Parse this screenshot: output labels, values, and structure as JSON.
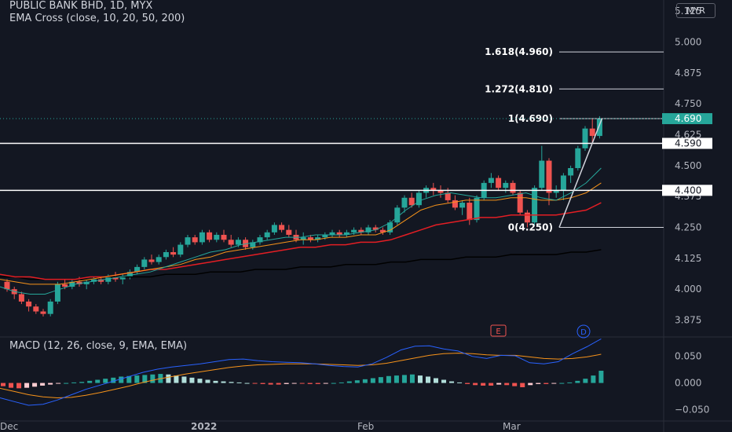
{
  "header": {
    "symbol_line": "PUBLIC BANK BHD, 1D, MYX",
    "indicator_line": "EMA Cross (close, 10, 20, 50, 200)",
    "currency": "MYR"
  },
  "macd": {
    "label": "MACD (12, 26, close, 9, EMA, EMA)"
  },
  "events": [
    "E",
    "D"
  ],
  "colors": {
    "background": "#131722",
    "up": "#26a69a",
    "down": "#ef5350",
    "ema10": "#26a69a",
    "ema20": "#f7931a",
    "ema50": "#e31e24",
    "ema200": "#000000",
    "macd_line": "#2962ff",
    "signal_line": "#f7931a",
    "hist_up": "#26a69a",
    "hist_up_light": "#b2dfdb",
    "hist_down": "#ef5350",
    "hist_down_light": "#ffcdd2"
  },
  "chart_data": [
    {
      "type": "candlestick",
      "title": "PUBLIC BANK BHD, 1D, MYX",
      "ylim": [
        3.81,
        5.17
      ],
      "y_ticks": [
        "5.125",
        "5.000",
        "4.875",
        "4.750",
        "4.625",
        "4.500",
        "4.375",
        "4.250",
        "4.125",
        "4.000",
        "3.875"
      ],
      "x_ticks": [
        "Dec",
        "2022",
        "Feb",
        "Mar"
      ],
      "price_label": "4.690",
      "horizontal_lines": [
        {
          "value": 4.59,
          "label": "4.590"
        },
        {
          "value": 4.4,
          "label": "4.400"
        }
      ],
      "fibonacci": [
        {
          "value": 4.96,
          "label": "1.618(4.960)"
        },
        {
          "value": 4.81,
          "label": "1.272(4.810)"
        },
        {
          "value": 4.69,
          "label": "1(4.690)"
        },
        {
          "value": 4.25,
          "label": "0(4.250)"
        }
      ],
      "candles": [
        [
          4.03,
          4.04,
          3.99,
          4.0
        ],
        [
          4.0,
          4.01,
          3.96,
          3.98
        ],
        [
          3.98,
          3.99,
          3.94,
          3.95
        ],
        [
          3.95,
          3.96,
          3.91,
          3.93
        ],
        [
          3.93,
          3.94,
          3.9,
          3.91
        ],
        [
          3.91,
          3.92,
          3.89,
          3.9
        ],
        [
          3.9,
          3.96,
          3.89,
          3.95
        ],
        [
          3.95,
          4.03,
          3.94,
          4.02
        ],
        [
          4.02,
          4.04,
          4.0,
          4.01
        ],
        [
          4.01,
          4.04,
          4.0,
          4.03
        ],
        [
          4.03,
          4.05,
          4.01,
          4.02
        ],
        [
          4.02,
          4.04,
          4.0,
          4.03
        ],
        [
          4.03,
          4.05,
          4.02,
          4.04
        ],
        [
          4.04,
          4.05,
          4.02,
          4.03
        ],
        [
          4.03,
          4.06,
          4.02,
          4.05
        ],
        [
          4.05,
          4.07,
          4.03,
          4.04
        ],
        [
          4.04,
          4.06,
          4.02,
          4.05
        ],
        [
          4.05,
          4.08,
          4.04,
          4.07
        ],
        [
          4.07,
          4.1,
          4.06,
          4.09
        ],
        [
          4.09,
          4.13,
          4.08,
          4.12
        ],
        [
          4.12,
          4.14,
          4.1,
          4.11
        ],
        [
          4.11,
          4.14,
          4.1,
          4.13
        ],
        [
          4.13,
          4.16,
          4.12,
          4.15
        ],
        [
          4.15,
          4.17,
          4.13,
          4.14
        ],
        [
          4.14,
          4.19,
          4.13,
          4.18
        ],
        [
          4.18,
          4.22,
          4.17,
          4.21
        ],
        [
          4.21,
          4.22,
          4.18,
          4.19
        ],
        [
          4.19,
          4.24,
          4.18,
          4.23
        ],
        [
          4.23,
          4.24,
          4.19,
          4.2
        ],
        [
          4.2,
          4.23,
          4.19,
          4.22
        ],
        [
          4.22,
          4.24,
          4.19,
          4.2
        ],
        [
          4.2,
          4.22,
          4.17,
          4.18
        ],
        [
          4.18,
          4.21,
          4.17,
          4.2
        ],
        [
          4.2,
          4.21,
          4.16,
          4.17
        ],
        [
          4.17,
          4.2,
          4.16,
          4.19
        ],
        [
          4.19,
          4.22,
          4.18,
          4.21
        ],
        [
          4.21,
          4.24,
          4.2,
          4.23
        ],
        [
          4.23,
          4.27,
          4.22,
          4.26
        ],
        [
          4.26,
          4.27,
          4.23,
          4.24
        ],
        [
          4.24,
          4.26,
          4.21,
          4.22
        ],
        [
          4.22,
          4.24,
          4.19,
          4.2
        ],
        [
          4.2,
          4.23,
          4.18,
          4.21
        ],
        [
          4.21,
          4.22,
          4.19,
          4.2
        ],
        [
          4.2,
          4.22,
          4.19,
          4.21
        ],
        [
          4.21,
          4.23,
          4.2,
          4.22
        ],
        [
          4.22,
          4.24,
          4.21,
          4.23
        ],
        [
          4.23,
          4.24,
          4.21,
          4.22
        ],
        [
          4.22,
          4.24,
          4.21,
          4.23
        ],
        [
          4.23,
          4.25,
          4.22,
          4.24
        ],
        [
          4.24,
          4.25,
          4.22,
          4.23
        ],
        [
          4.23,
          4.26,
          4.22,
          4.25
        ],
        [
          4.25,
          4.26,
          4.23,
          4.24
        ],
        [
          4.24,
          4.25,
          4.22,
          4.23
        ],
        [
          4.23,
          4.28,
          4.22,
          4.27
        ],
        [
          4.27,
          4.34,
          4.26,
          4.33
        ],
        [
          4.33,
          4.38,
          4.31,
          4.37
        ],
        [
          4.37,
          4.39,
          4.33,
          4.34
        ],
        [
          4.34,
          4.4,
          4.33,
          4.39
        ],
        [
          4.39,
          4.42,
          4.37,
          4.41
        ],
        [
          4.41,
          4.43,
          4.38,
          4.4
        ],
        [
          4.4,
          4.42,
          4.37,
          4.39
        ],
        [
          4.39,
          4.41,
          4.35,
          4.36
        ],
        [
          4.36,
          4.38,
          4.32,
          4.33
        ],
        [
          4.33,
          4.36,
          4.3,
          4.35
        ],
        [
          4.35,
          4.37,
          4.26,
          4.28
        ],
        [
          4.28,
          4.38,
          4.27,
          4.37
        ],
        [
          4.37,
          4.44,
          4.36,
          4.43
        ],
        [
          4.43,
          4.47,
          4.41,
          4.45
        ],
        [
          4.45,
          4.46,
          4.4,
          4.41
        ],
        [
          4.41,
          4.44,
          4.39,
          4.43
        ],
        [
          4.43,
          4.44,
          4.38,
          4.39
        ],
        [
          4.39,
          4.4,
          4.3,
          4.31
        ],
        [
          4.31,
          4.32,
          4.25,
          4.27
        ],
        [
          4.27,
          4.42,
          4.26,
          4.41
        ],
        [
          4.41,
          4.58,
          4.4,
          4.52
        ],
        [
          4.52,
          4.53,
          4.34,
          4.39
        ],
        [
          4.39,
          4.42,
          4.37,
          4.4
        ],
        [
          4.4,
          4.47,
          4.36,
          4.46
        ],
        [
          4.46,
          4.5,
          4.43,
          4.49
        ],
        [
          4.49,
          4.58,
          4.48,
          4.57
        ],
        [
          4.57,
          4.66,
          4.56,
          4.65
        ],
        [
          4.65,
          4.69,
          4.59,
          4.62
        ],
        [
          4.62,
          4.7,
          4.61,
          4.69
        ]
      ],
      "ema10": [
        4.01,
        3.99,
        3.98,
        3.98,
        4.0,
        4.02,
        4.03,
        4.04,
        4.05,
        4.06,
        4.07,
        4.09,
        4.11,
        4.13,
        4.15,
        4.16,
        4.18,
        4.19,
        4.2,
        4.21,
        4.21,
        4.22,
        4.22,
        4.22,
        4.23,
        4.24,
        4.27,
        4.32,
        4.36,
        4.38,
        4.39,
        4.38,
        4.37,
        4.37,
        4.38,
        4.39,
        4.37,
        4.36,
        4.39,
        4.43,
        4.49
      ],
      "ema20": [
        4.04,
        4.03,
        4.02,
        4.02,
        4.02,
        4.03,
        4.04,
        4.05,
        4.06,
        4.07,
        4.08,
        4.09,
        4.1,
        4.12,
        4.13,
        4.15,
        4.16,
        4.17,
        4.18,
        4.19,
        4.2,
        4.2,
        4.21,
        4.21,
        4.22,
        4.22,
        4.24,
        4.28,
        4.32,
        4.34,
        4.35,
        4.36,
        4.36,
        4.36,
        4.37,
        4.37,
        4.36,
        4.36,
        4.37,
        4.39,
        4.43
      ],
      "ema50": [
        4.06,
        4.05,
        4.05,
        4.04,
        4.04,
        4.04,
        4.05,
        4.05,
        4.06,
        4.07,
        4.08,
        4.08,
        4.09,
        4.1,
        4.11,
        4.12,
        4.13,
        4.14,
        4.15,
        4.16,
        4.17,
        4.17,
        4.18,
        4.18,
        4.19,
        4.19,
        4.2,
        4.22,
        4.24,
        4.26,
        4.27,
        4.28,
        4.29,
        4.29,
        4.3,
        4.3,
        4.3,
        4.3,
        4.31,
        4.32,
        4.35
      ],
      "ema200": [
        4.05,
        4.05,
        4.04,
        4.04,
        4.04,
        4.04,
        4.04,
        4.05,
        4.05,
        4.05,
        4.05,
        4.06,
        4.06,
        4.06,
        4.07,
        4.07,
        4.07,
        4.08,
        4.08,
        4.08,
        4.09,
        4.09,
        4.09,
        4.1,
        4.1,
        4.1,
        4.11,
        4.11,
        4.12,
        4.12,
        4.12,
        4.13,
        4.13,
        4.13,
        4.14,
        4.14,
        4.14,
        4.14,
        4.15,
        4.15,
        4.16
      ]
    },
    {
      "type": "macd",
      "title": "MACD (12, 26, close, 9, EMA, EMA)",
      "ylim": [
        -0.07,
        0.085
      ],
      "y_ticks": [
        "0.050",
        "0.000",
        "−0.050"
      ],
      "macd": [
        -0.028,
        -0.035,
        -0.042,
        -0.04,
        -0.032,
        -0.022,
        -0.012,
        -0.004,
        0.004,
        0.012,
        0.02,
        0.026,
        0.03,
        0.033,
        0.036,
        0.04,
        0.044,
        0.045,
        0.042,
        0.04,
        0.039,
        0.038,
        0.036,
        0.033,
        0.031,
        0.03,
        0.036,
        0.048,
        0.062,
        0.069,
        0.07,
        0.064,
        0.06,
        0.05,
        0.046,
        0.052,
        0.051,
        0.038,
        0.036,
        0.04,
        0.055,
        0.068,
        0.083
      ],
      "signal": [
        -0.01,
        -0.016,
        -0.022,
        -0.026,
        -0.028,
        -0.027,
        -0.023,
        -0.018,
        -0.012,
        -0.006,
        0.001,
        0.007,
        0.012,
        0.017,
        0.021,
        0.025,
        0.029,
        0.032,
        0.034,
        0.035,
        0.036,
        0.036,
        0.036,
        0.035,
        0.034,
        0.033,
        0.034,
        0.037,
        0.042,
        0.047,
        0.052,
        0.055,
        0.056,
        0.055,
        0.053,
        0.052,
        0.052,
        0.049,
        0.046,
        0.045,
        0.046,
        0.049,
        0.054
      ],
      "histogram": [
        -0.006,
        -0.009,
        -0.01,
        -0.009,
        -0.007,
        -0.005,
        -0.003,
        -0.001,
        0.0,
        0.001,
        0.002,
        0.004,
        0.006,
        0.008,
        0.01,
        0.012,
        0.013,
        0.014,
        0.015,
        0.016,
        0.017,
        0.016,
        0.014,
        0.012,
        0.01,
        0.008,
        0.006,
        0.004,
        0.003,
        0.002,
        0.001,
        0.0,
        -0.001,
        -0.002,
        -0.003,
        -0.003,
        -0.002,
        -0.001,
        -0.001,
        -0.002,
        -0.002,
        -0.001,
        0.0,
        0.001,
        0.003,
        0.005,
        0.007,
        0.009,
        0.011,
        0.013,
        0.014,
        0.015,
        0.016,
        0.014,
        0.012,
        0.009,
        0.006,
        0.003,
        0.001,
        -0.002,
        -0.004,
        -0.005,
        -0.005,
        -0.003,
        -0.004,
        -0.006,
        -0.008,
        -0.004,
        -0.002,
        -0.002,
        -0.001,
        0.0,
        0.001,
        0.004,
        0.008,
        0.014,
        0.023
      ]
    }
  ]
}
